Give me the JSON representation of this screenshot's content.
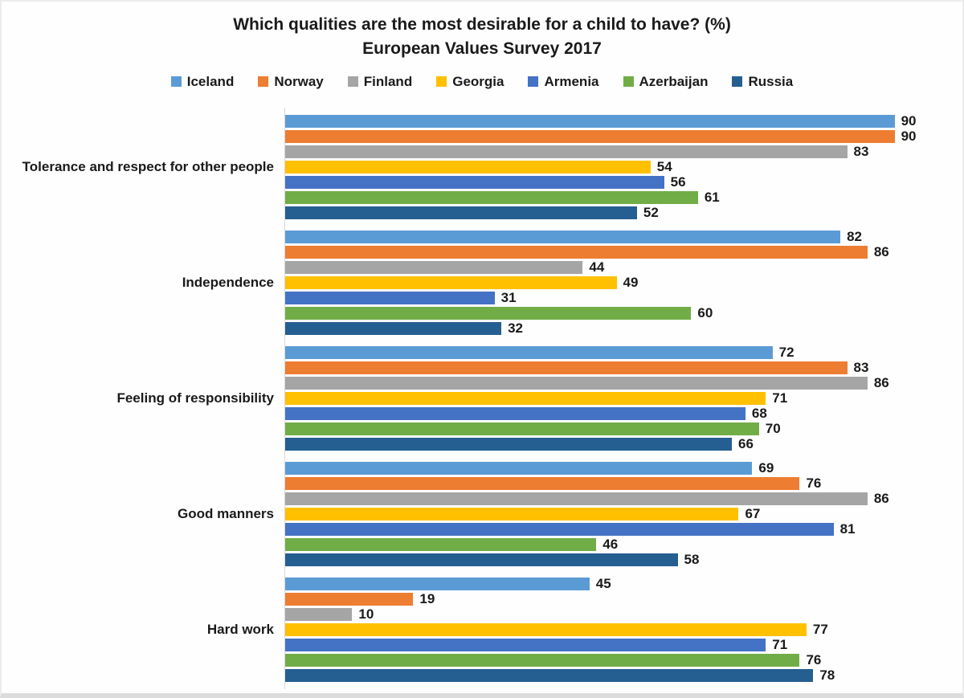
{
  "chart_data": {
    "type": "bar",
    "orientation": "horizontal",
    "title": "Which qualities are the most desirable for a child to have? (%)",
    "subtitle": "European Values Survey 2017",
    "categories": [
      "Tolerance and respect for other people",
      "Independence",
      "Feeling of responsibility",
      "Good manners",
      "Hard work"
    ],
    "series": [
      {
        "name": "Iceland",
        "color": "#5B9BD5",
        "values": [
          90,
          82,
          72,
          69,
          45
        ]
      },
      {
        "name": "Norway",
        "color": "#ED7D31",
        "values": [
          90,
          86,
          83,
          76,
          19
        ]
      },
      {
        "name": "Finland",
        "color": "#A5A5A5",
        "values": [
          83,
          44,
          86,
          86,
          10
        ]
      },
      {
        "name": "Georgia",
        "color": "#FFC000",
        "values": [
          54,
          49,
          71,
          67,
          77
        ]
      },
      {
        "name": "Armenia",
        "color": "#4472C4",
        "values": [
          56,
          31,
          68,
          81,
          71
        ]
      },
      {
        "name": "Azerbaijan",
        "color": "#70AD47",
        "values": [
          61,
          60,
          70,
          46,
          76
        ]
      },
      {
        "name": "Russia",
        "color": "#255E91",
        "values": [
          52,
          32,
          66,
          58,
          78
        ]
      }
    ],
    "xlim": [
      0,
      100
    ],
    "value_labels": true,
    "legend_position": "top",
    "grid": false,
    "axis_color": "#D9D9D9",
    "text_color": "#1A1A1A"
  }
}
